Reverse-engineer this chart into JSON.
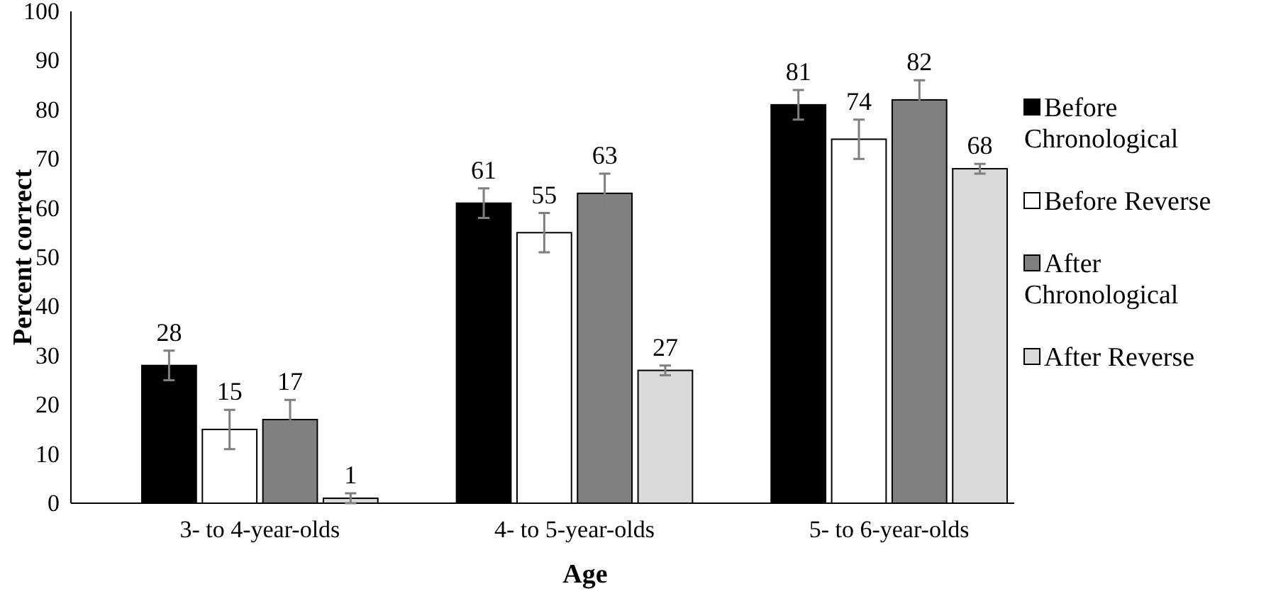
{
  "chart_data": {
    "type": "bar",
    "xlabel": "Age",
    "ylabel": "Percent correct",
    "categories": [
      "3- to 4-year-olds",
      "4- to 5-year-olds",
      "5- to 6-year-olds"
    ],
    "series": [
      {
        "name": "Before Chronological",
        "color": "#000000",
        "values": [
          28,
          61,
          81
        ],
        "errors": [
          3,
          3,
          3
        ]
      },
      {
        "name": "Before Reverse",
        "color": "#ffffff",
        "values": [
          15,
          55,
          74
        ],
        "errors": [
          4,
          4,
          4
        ]
      },
      {
        "name": "After Chronological",
        "color": "#808080",
        "values": [
          17,
          63,
          82
        ],
        "errors": [
          4,
          4,
          4
        ]
      },
      {
        "name": "After Reverse",
        "color": "#d9d9d9",
        "values": [
          1,
          27,
          68
        ],
        "errors": [
          1,
          1,
          1
        ]
      }
    ],
    "ylim": [
      0,
      100
    ],
    "yticks": [
      0,
      10,
      20,
      30,
      40,
      50,
      60,
      70,
      80,
      90,
      100
    ],
    "data_labels": true,
    "grid": false,
    "legend": "right"
  }
}
